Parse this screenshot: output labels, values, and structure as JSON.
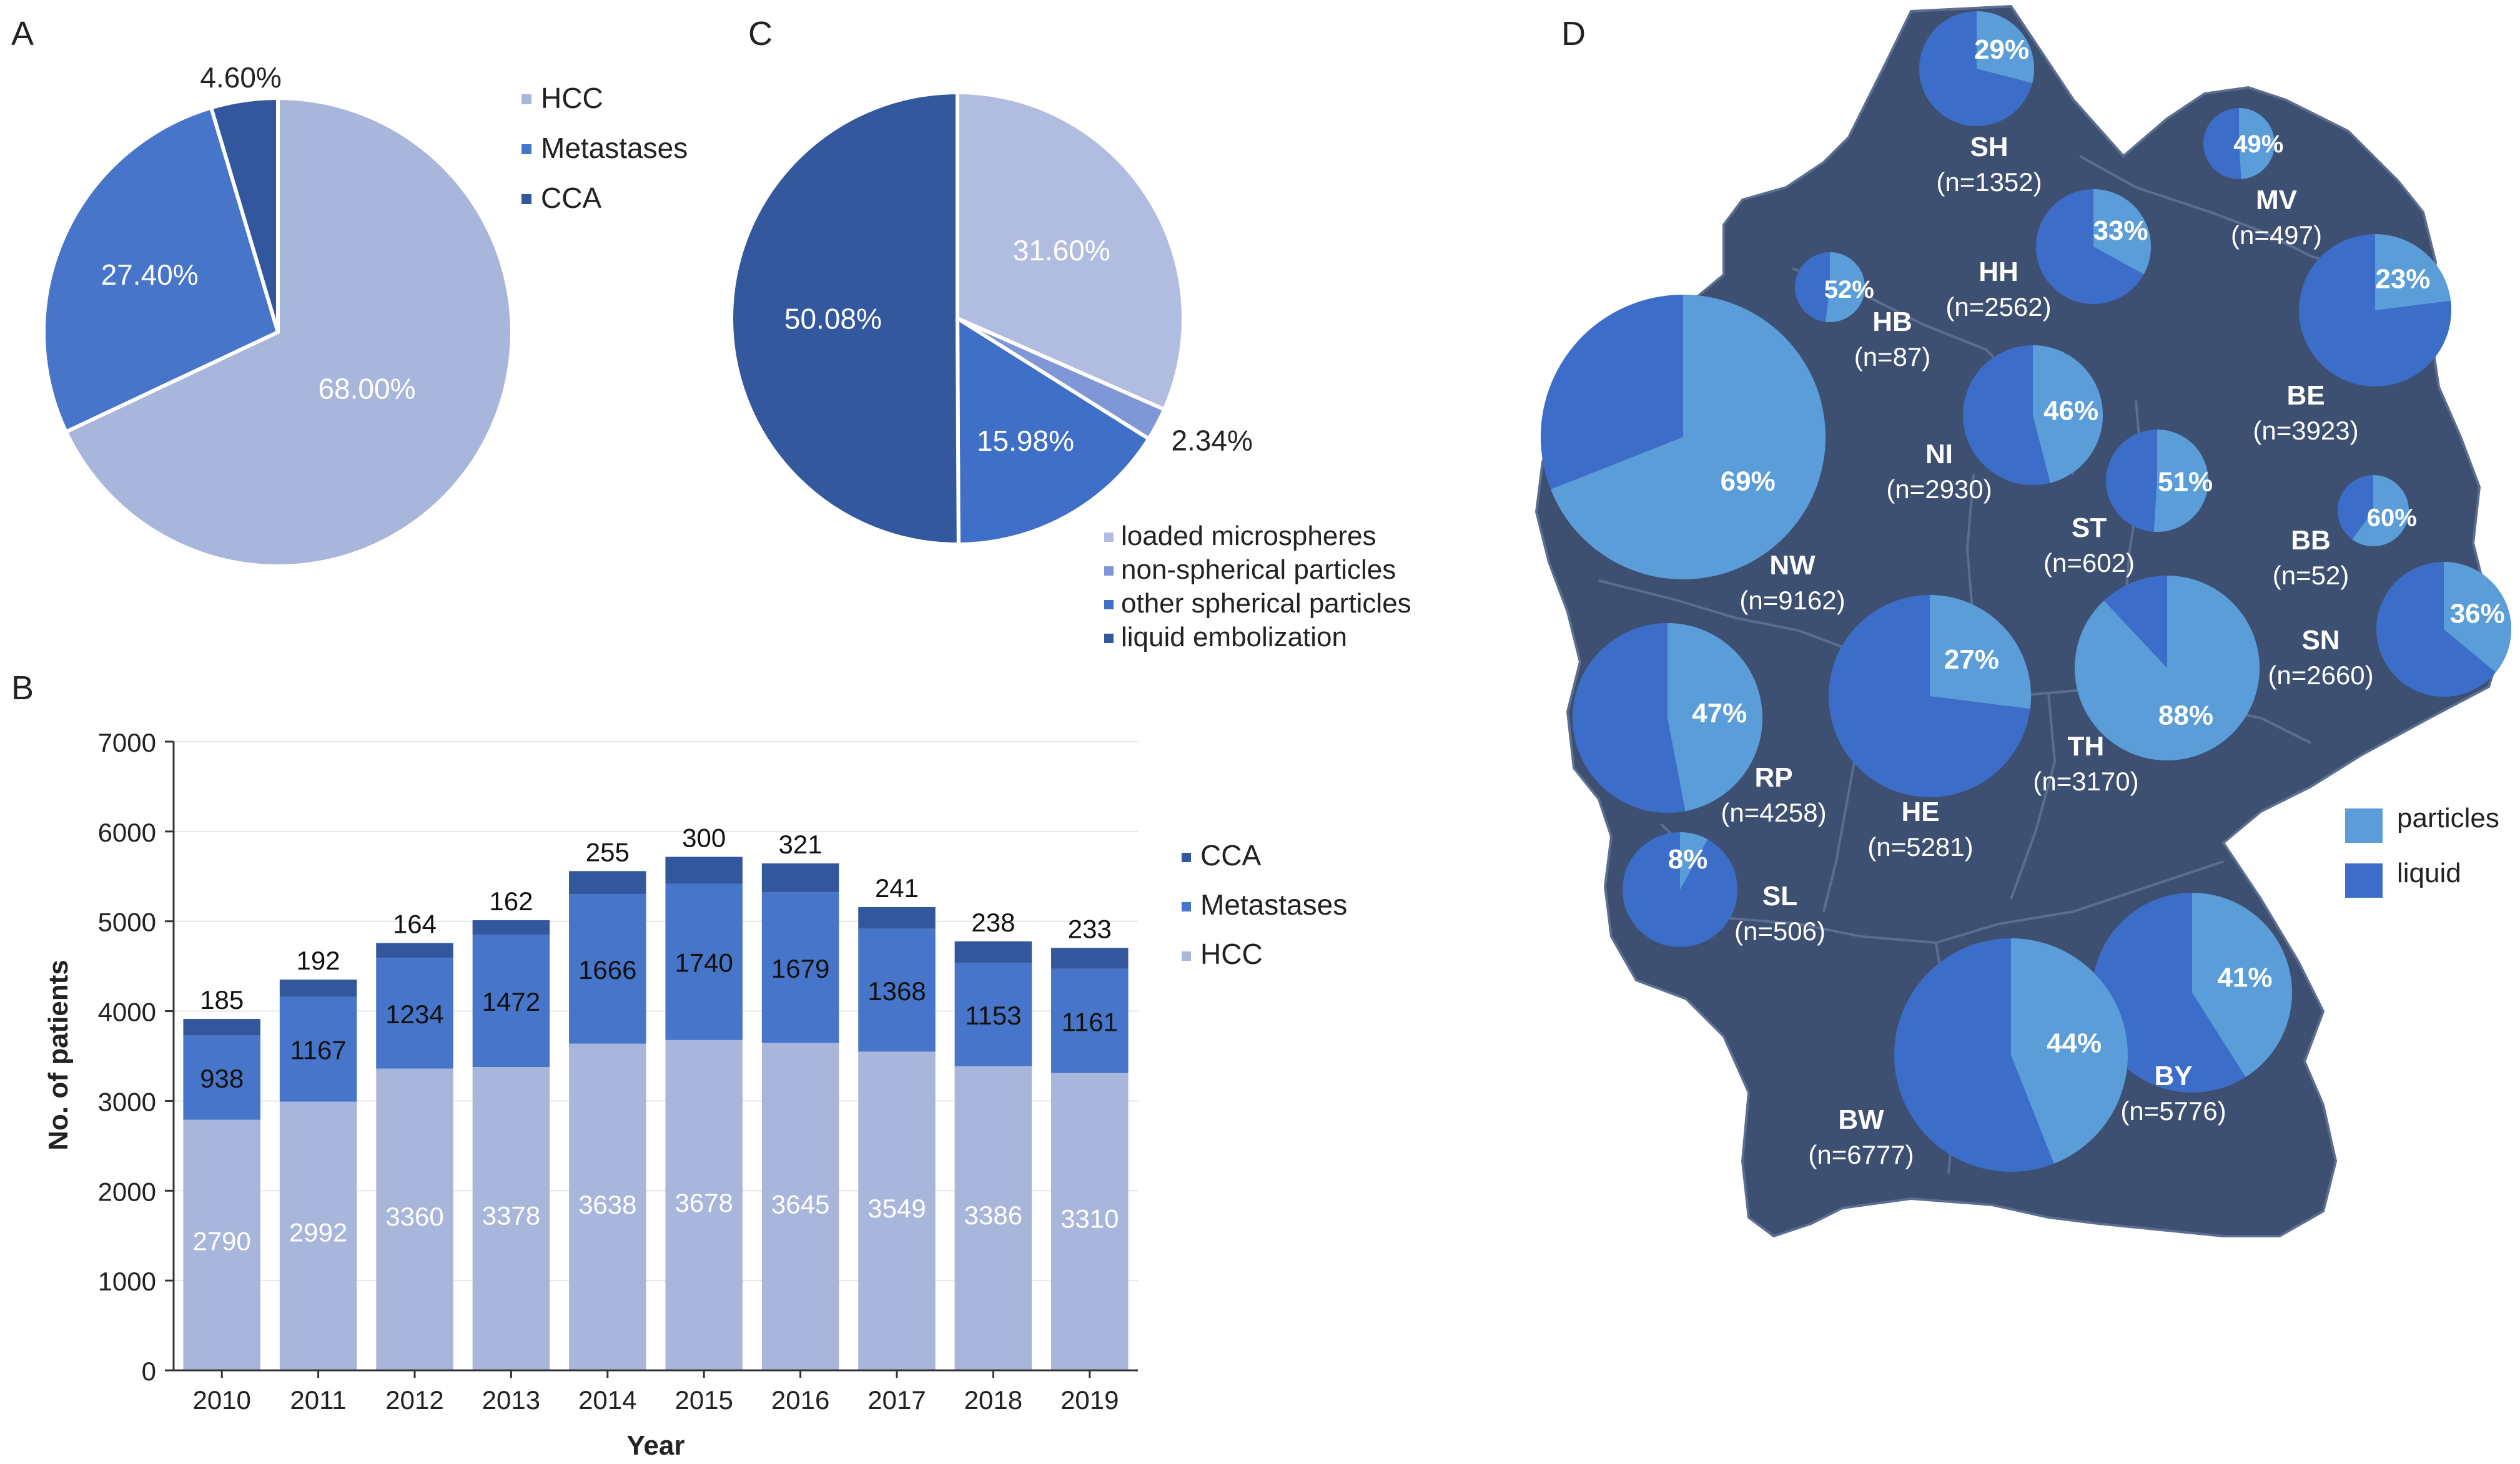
{
  "colors": {
    "hcc": "#a9b6dc",
    "metastases": "#4675c9",
    "cca": "#33579c",
    "loaded": "#b1bde0",
    "nonspherical": "#7f97d6",
    "otherspherical": "#3f6fc7",
    "liquid_embolization": "#33589e",
    "particles": "#5a9dd9",
    "liquid": "#3c6dc8",
    "map": "#3e5071",
    "map_border": "#5b6e90"
  },
  "panel_labels": {
    "a": "A",
    "b": "B",
    "c": "C",
    "d": "D"
  },
  "chart_data": [
    {
      "type": "pie",
      "panel": "A",
      "labels": [
        "HCC",
        "Metastases",
        "CCA"
      ],
      "values": [
        68.0,
        27.4,
        4.6
      ],
      "value_labels": [
        "68.00%",
        "27.40%",
        "4.60%"
      ],
      "legend": [
        "HCC",
        "Metastases",
        "CCA"
      ]
    },
    {
      "type": "bar",
      "stacked": true,
      "panel": "B",
      "categories": [
        "2010",
        "2011",
        "2012",
        "2013",
        "2014",
        "2015",
        "2016",
        "2017",
        "2018",
        "2019"
      ],
      "series": [
        {
          "name": "HCC",
          "values": [
            2790,
            2992,
            3360,
            3378,
            3638,
            3678,
            3645,
            3549,
            3386,
            3310
          ]
        },
        {
          "name": "Metastases",
          "values": [
            938,
            1167,
            1234,
            1472,
            1666,
            1740,
            1679,
            1368,
            1153,
            1161
          ]
        },
        {
          "name": "CCA",
          "values": [
            185,
            192,
            164,
            162,
            255,
            300,
            321,
            241,
            238,
            233
          ]
        }
      ],
      "legend": [
        "CCA",
        "Metastases",
        "HCC"
      ],
      "xlabel": "Year",
      "ylabel": "No. of patients",
      "ylim": [
        0,
        7000
      ],
      "yticks": [
        "0",
        "1000",
        "2000",
        "3000",
        "4000",
        "5000",
        "6000",
        "7000"
      ]
    },
    {
      "type": "pie",
      "panel": "C",
      "labels": [
        "loaded microspheres",
        "non-spherical particles",
        "other spherical particles",
        "liquid embolization"
      ],
      "values": [
        31.6,
        2.34,
        15.98,
        50.08
      ],
      "value_labels": [
        "31.60%",
        "2.34%",
        "15.98%",
        "50.08%"
      ],
      "legend": [
        "loaded microspheres",
        "non-spherical particles",
        "other spherical particles",
        "liquid embolization"
      ]
    },
    {
      "type": "map-pies",
      "panel": "D",
      "legend": [
        "particles",
        "liquid"
      ],
      "regions": [
        {
          "code": "SH",
          "n": "(n=1352)",
          "particles_pct": 29,
          "label": "29%"
        },
        {
          "code": "MV",
          "n": "(n=497)",
          "particles_pct": 49,
          "label": "49%"
        },
        {
          "code": "HH",
          "n": "(n=2562)",
          "particles_pct": 33,
          "label": "33%"
        },
        {
          "code": "HB",
          "n": "(n=87)",
          "particles_pct": 52,
          "label": "52%"
        },
        {
          "code": "BE",
          "n": "(n=3923)",
          "particles_pct": 23,
          "label": "23%"
        },
        {
          "code": "NI",
          "n": "(n=2930)",
          "particles_pct": 46,
          "label": "46%"
        },
        {
          "code": "ST",
          "n": "(n=602)",
          "particles_pct": 51,
          "label": "51%"
        },
        {
          "code": "BB",
          "n": "(n=52)",
          "particles_pct": 60,
          "label": "60%"
        },
        {
          "code": "NW",
          "n": "(n=9162)",
          "particles_pct": 69,
          "label": "69%"
        },
        {
          "code": "SN",
          "n": "(n=2660)",
          "particles_pct": 36,
          "label": "36%"
        },
        {
          "code": "RP",
          "n": "(n=4258)",
          "particles_pct": 47,
          "label": "47%"
        },
        {
          "code": "HE",
          "n": "(n=5281)",
          "particles_pct": 27,
          "label": "27%"
        },
        {
          "code": "TH",
          "n": "(n=3170)",
          "particles_pct": 88,
          "label": "88%"
        },
        {
          "code": "SL",
          "n": "(n=506)",
          "particles_pct": 8,
          "label": "8%"
        },
        {
          "code": "BY",
          "n": "(n=5776)",
          "particles_pct": 41,
          "label": "41%"
        },
        {
          "code": "BW",
          "n": "(n=6777)",
          "particles_pct": 44,
          "label": "44%"
        }
      ]
    }
  ]
}
